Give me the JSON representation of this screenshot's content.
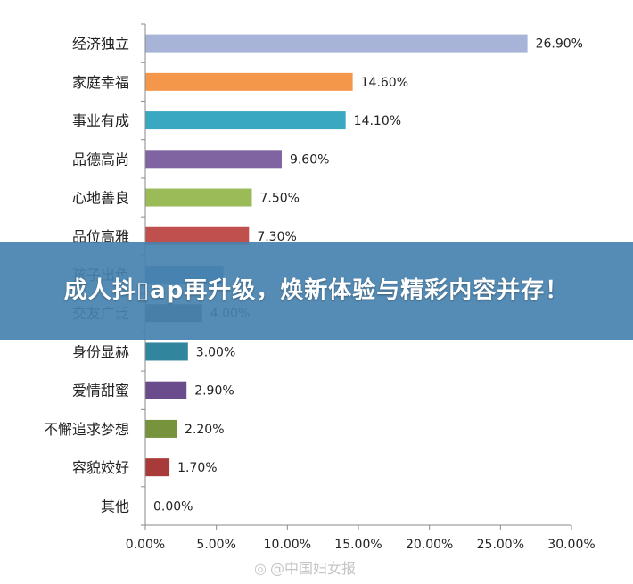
{
  "overlay": {
    "title": "成人抖▯ap再升级，焕新体验与精彩内容并存！"
  },
  "watermark": {
    "text": "@中国妇女报",
    "icon": "weibo-icon"
  },
  "chart_data": {
    "type": "bar",
    "orientation": "horizontal",
    "categories": [
      "经济独立",
      "家庭幸福",
      "事业有成",
      "品德高尚",
      "心地善良",
      "品位高雅",
      "孩子出色",
      "交友广泛",
      "身份显赫",
      "爱情甜蜜",
      "不懈追求梦想",
      "容貌姣好",
      "其他"
    ],
    "values": [
      26.9,
      14.6,
      14.1,
      9.6,
      7.5,
      7.3,
      5.5,
      4.0,
      3.0,
      2.9,
      2.2,
      1.7,
      0.0
    ],
    "value_labels": [
      "26.90%",
      "14.60%",
      "14.10%",
      "9.60%",
      "7.50%",
      "7.30%",
      "",
      "4.00%",
      "3.00%",
      "2.90%",
      "2.20%",
      "1.70%",
      "0.00%"
    ],
    "colors": [
      "#a7b4d8",
      "#f5974a",
      "#3aa8c1",
      "#8064a2",
      "#9bbb59",
      "#c0504d",
      "#4f81bd",
      "#4a5f6a",
      "#31859c",
      "#6a4c8c",
      "#77933c",
      "#a93a3a",
      "#888888"
    ],
    "xticks": [
      "0.00%",
      "5.00%",
      "10.00%",
      "15.00%",
      "20.00%",
      "25.00%",
      "30.00%"
    ],
    "xlim": [
      0,
      30
    ],
    "grid": false,
    "legend": "none"
  }
}
